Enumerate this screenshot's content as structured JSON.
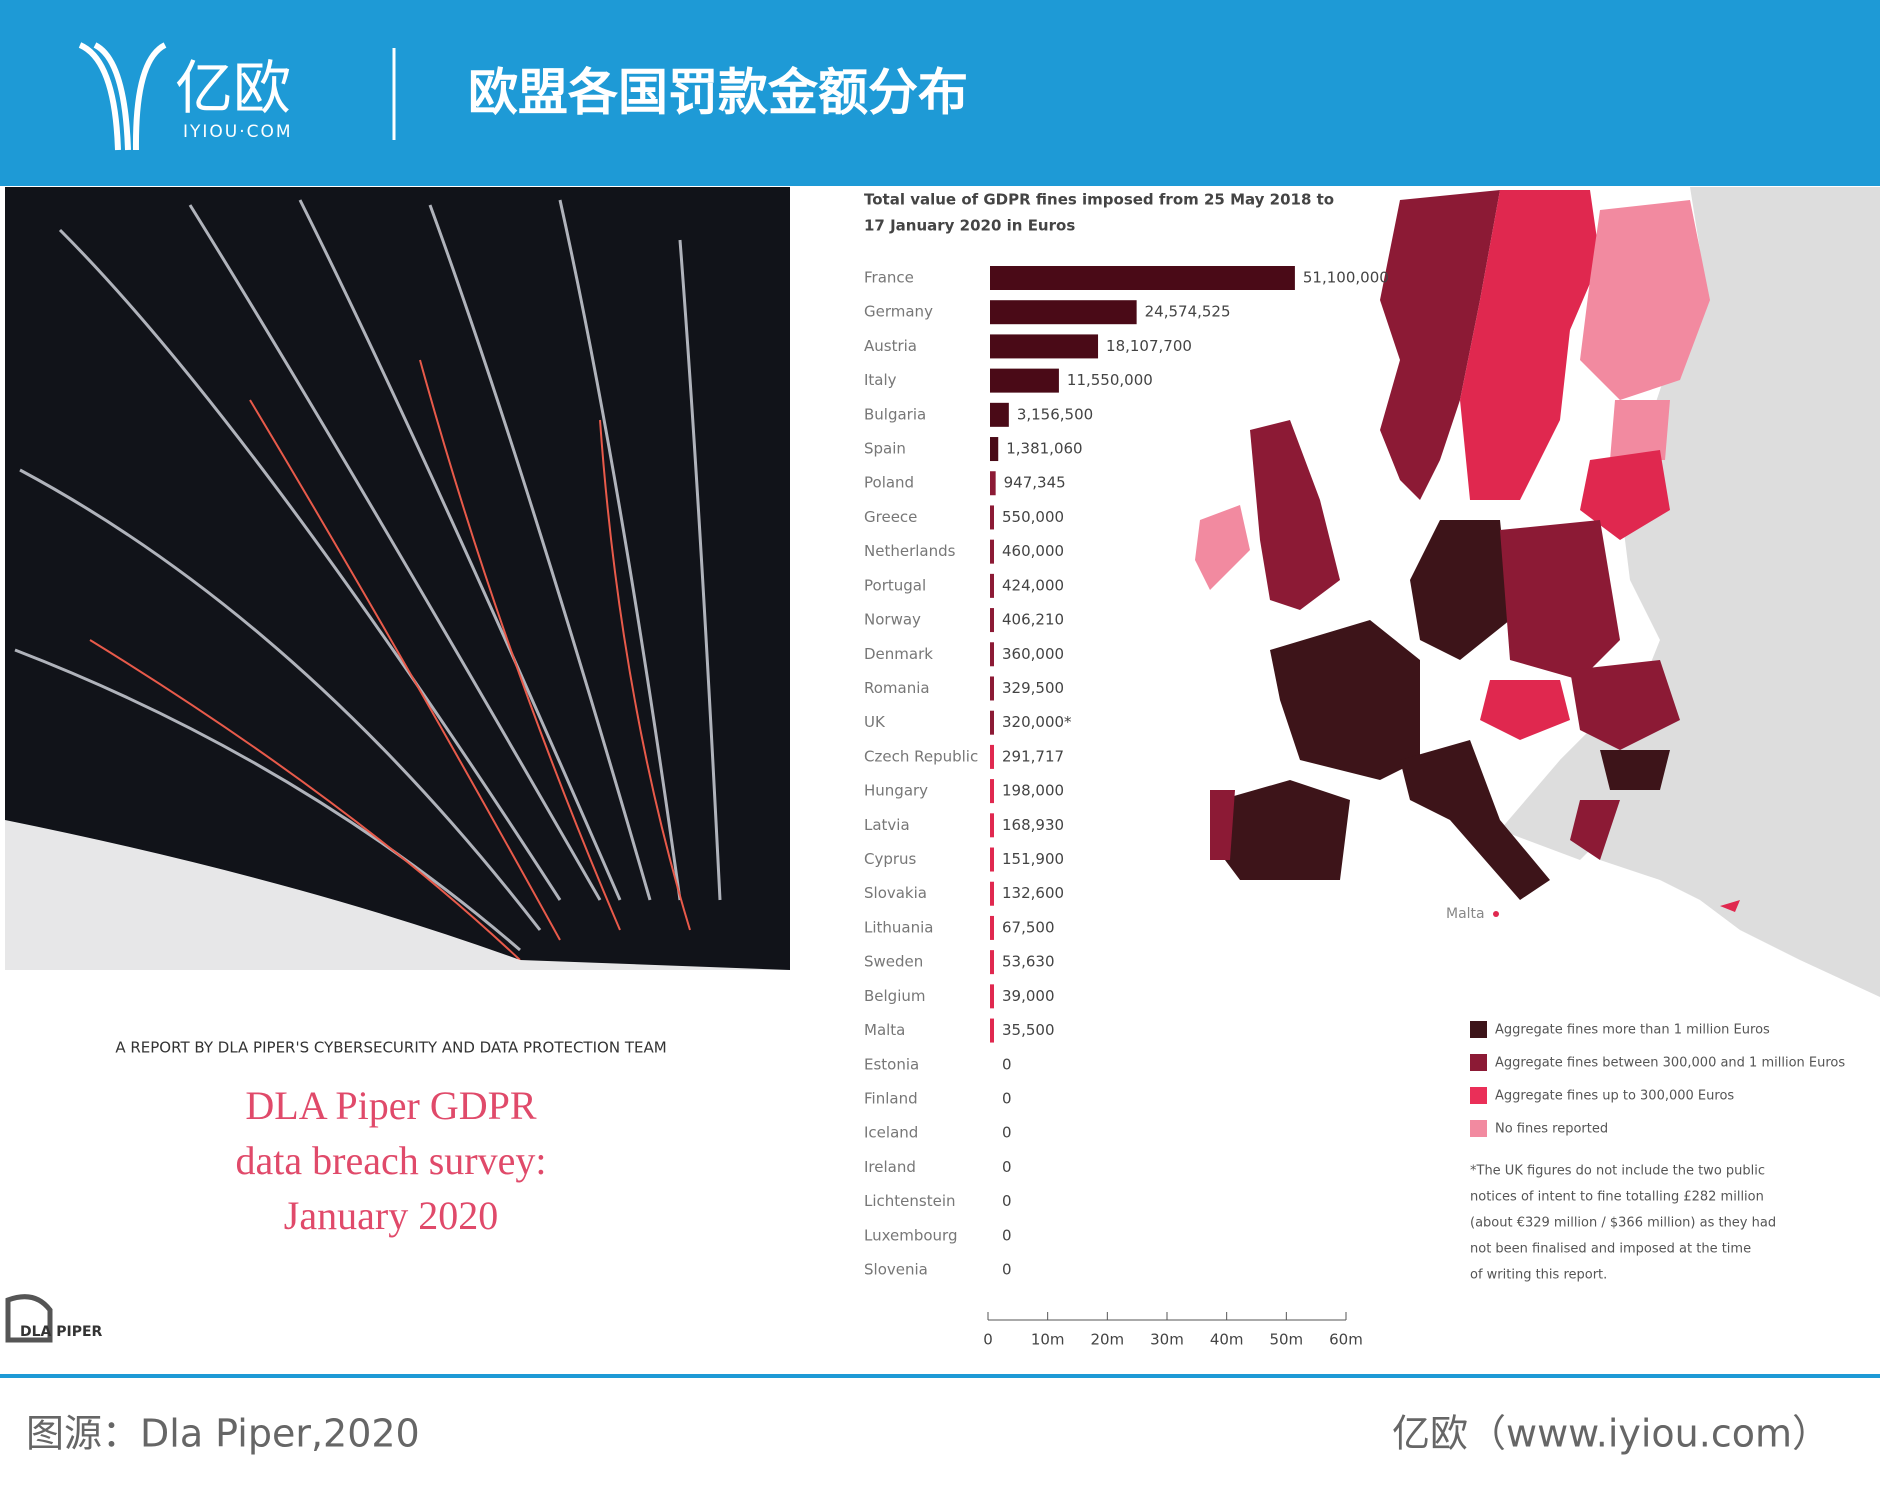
{
  "header": {
    "logo_text": "亿欧",
    "logo_sub": "IYIOU·COM",
    "title": "欧盟各国罚款金额分布"
  },
  "cover": {
    "report_by": "A REPORT BY DLA PIPER'S CYBERSECURITY AND DATA PROTECTION TEAM",
    "title_lines": [
      "DLA Piper GDPR",
      "data breach survey:",
      "January 2020"
    ],
    "brand": "DLA PIPER"
  },
  "chart_data": {
    "type": "bar",
    "orientation": "horizontal",
    "title_lines": [
      "Total value of GDPR fines imposed from 25 May 2018 to",
      "17 January 2020 in Euros"
    ],
    "categories": [
      "France",
      "Germany",
      "Austria",
      "Italy",
      "Bulgaria",
      "Spain",
      "Poland",
      "Greece",
      "Netherlands",
      "Portugal",
      "Norway",
      "Denmark",
      "Romania",
      "UK",
      "Czech Republic",
      "Hungary",
      "Latvia",
      "Cyprus",
      "Slovakia",
      "Lithuania",
      "Sweden",
      "Belgium",
      "Malta",
      "Estonia",
      "Finland",
      "Iceland",
      "Ireland",
      "Lichtenstein",
      "Luxembourg",
      "Slovenia"
    ],
    "values": [
      51100000,
      24574525,
      18107700,
      11550000,
      3156500,
      1381060,
      947345,
      550000,
      460000,
      424000,
      406210,
      360000,
      329500,
      320000,
      291717,
      198000,
      168930,
      151900,
      132600,
      67500,
      53630,
      39000,
      35500,
      0,
      0,
      0,
      0,
      0,
      0,
      0
    ],
    "value_labels": [
      "51,100,000",
      "24,574,525",
      "18,107,700",
      "11,550,000",
      "3,156,500",
      "1,381,060",
      "947,345",
      "550,000",
      "460,000",
      "424,000",
      "406,210",
      "360,000",
      "329,500",
      "320,000*",
      "291,717",
      "198,000",
      "168,930",
      "151,900",
      "132,600",
      "67,500",
      "53,630",
      "39,000",
      "35,500",
      "0",
      "0",
      "0",
      "0",
      "0",
      "0",
      "0"
    ],
    "colors": [
      "#4a0a17",
      "#4a0a17",
      "#4a0a17",
      "#4a0a17",
      "#4a0a17",
      "#4a0a17",
      "#8c1a35",
      "#8c1a35",
      "#8c1a35",
      "#8c1a35",
      "#8c1a35",
      "#8c1a35",
      "#8c1a35",
      "#8c1a35",
      "#e0284f",
      "#e0284f",
      "#e0284f",
      "#e0284f",
      "#e0284f",
      "#e0284f",
      "#e0284f",
      "#e0284f",
      "#e0284f",
      "#e0284f",
      "#e0284f",
      "#e0284f",
      "#e0284f",
      "#e0284f",
      "#e0284f",
      "#e0284f"
    ],
    "xlim": [
      0,
      60000000
    ],
    "xticks": [
      0,
      {
        "value": 10000000,
        "label": "10m"
      },
      {
        "value": 20000000,
        "label": "20m"
      },
      {
        "value": 30000000,
        "label": "30m"
      },
      {
        "value": 40000000,
        "label": "40m"
      },
      {
        "value": 50000000,
        "label": "50m"
      },
      {
        "value": 60000000,
        "label": "60m"
      }
    ]
  },
  "map": {
    "malta_label": "Malta",
    "legend": [
      {
        "label": "Aggregate fines more than 1 million Euros",
        "color": "#3d1419"
      },
      {
        "label": "Aggregate fines between 300,000 and 1 million Euros",
        "color": "#8c1a35"
      },
      {
        "label": "Aggregate fines up to 300,000 Euros",
        "color": "#ea2f58"
      },
      {
        "label": "No fines reported",
        "color": "#f28aa0"
      }
    ],
    "note_lines": [
      "*The UK figures do not include the two public",
      "notices of intent to fine totalling £282 million",
      "(about €329 million / $366 million) as they had",
      "not been finalised and imposed at the time",
      "of writing this report."
    ]
  },
  "footer": {
    "source": "图源：Dla Piper,2020",
    "site": "亿欧（www.iyiou.com）"
  }
}
